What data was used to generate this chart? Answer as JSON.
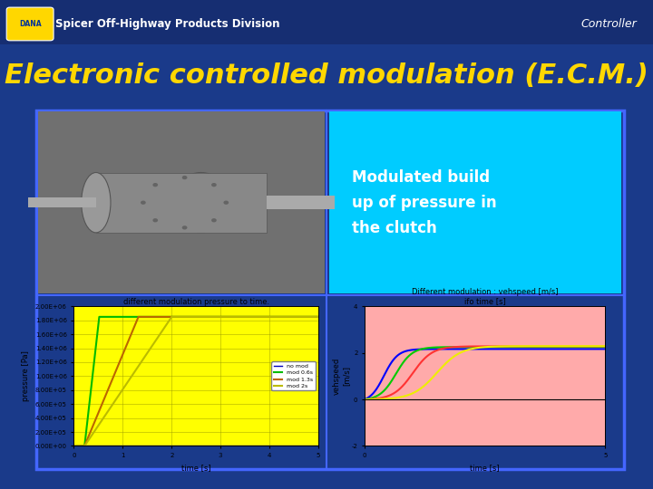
{
  "title": "Electronic controlled modulation (E.C.M.)",
  "title_color": "#FFD700",
  "title_fontsize": 22,
  "bg_color": "#1a3a8a",
  "header_text": "Spicer Off-Highway Products Division",
  "header_right": "Controller",
  "text_box_bg": "#00CCFF",
  "text_box_text": "Modulated build\nup of pressure in\nthe clutch",
  "pressure_plot_bg": "#FFFF00",
  "pressure_title": "different modulation pressure to time.",
  "pressure_xlabel": "time [s]",
  "pressure_ylabel": "pressure [Pa]",
  "pressure_yticks": [
    "0.00E+00",
    "2.00E+05",
    "4.00E+05",
    "6.00E+05",
    "8.00E+05",
    "1.00E+06",
    "1.20E+06",
    "1.40E+06",
    "1.60E+06",
    "1.80E+06",
    "2.00E+06"
  ],
  "pressure_yvalues": [
    0,
    200000,
    400000,
    600000,
    800000,
    1000000,
    1200000,
    1400000,
    1600000,
    1800000,
    2000000
  ],
  "pressure_xlim": [
    0,
    5
  ],
  "pressure_ylim": [
    0,
    2000000
  ],
  "veh_plot_bg": "#FFAAAA",
  "veh_title1": "Different modulation : vehspeed [m/s]",
  "veh_title2": "ifo time [s]",
  "veh_xlabel": "time [s]",
  "veh_ylabel": "vehspeed\n[m/s]",
  "veh_xlim": [
    0,
    5
  ],
  "veh_ylim": [
    -2,
    4
  ],
  "veh_yticks": [
    -2,
    0,
    2,
    4
  ],
  "legend_labels": [
    "no mod",
    "mod 0.6s",
    "mod 1.3s",
    "mod 2s"
  ],
  "pressure_colors": [
    "#0000BB",
    "#00BB00",
    "#BB6600",
    "#BBBB00"
  ],
  "veh_colors": [
    "#0000FF",
    "#00CC00",
    "#FF3333",
    "#EEEE00"
  ]
}
